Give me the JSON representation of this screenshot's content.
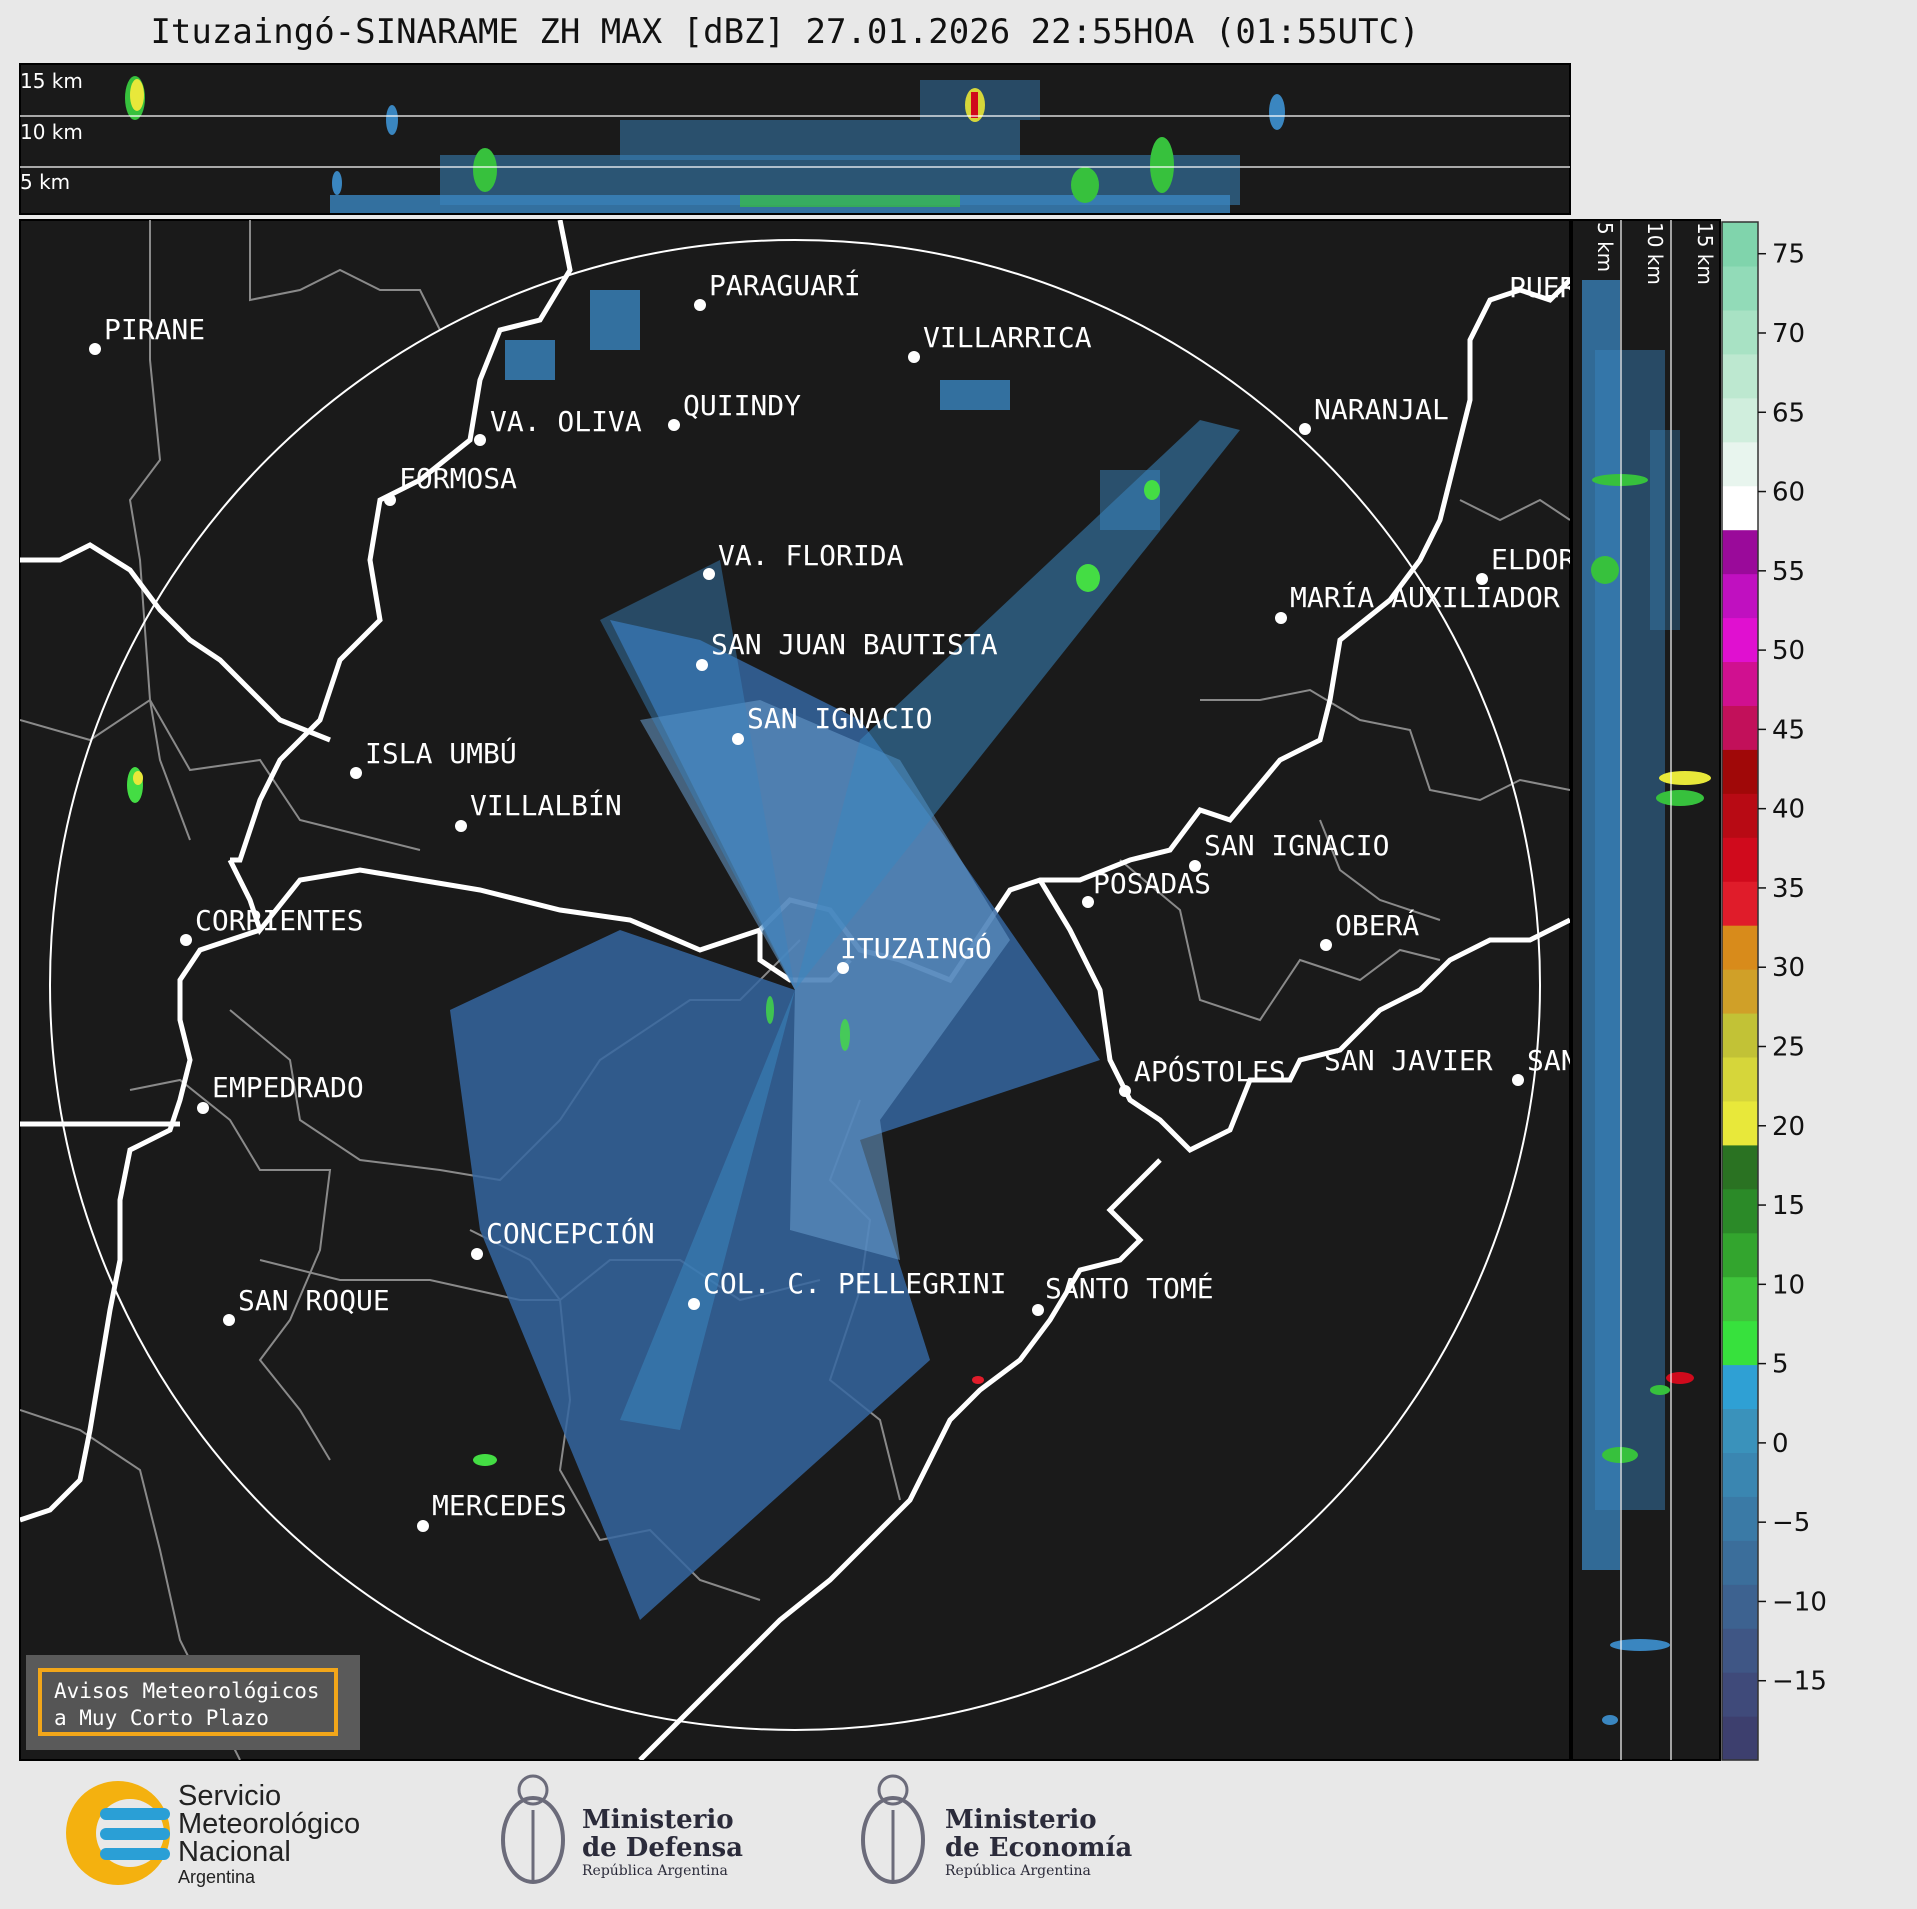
{
  "title": "Ituzaingó-SINARAME ZH MAX [dBZ] 27.01.2026 22:55HOA (01:55UTC)",
  "height_scale": [
    "15 km",
    "10 km",
    "5 km"
  ],
  "cities": [
    {
      "name": "PARAGUARÍ"
    },
    {
      "name": "PIRANE"
    },
    {
      "name": "VILLARRICA"
    },
    {
      "name": "QUIINDY"
    },
    {
      "name": "VA. OLIVA"
    },
    {
      "name": "NARANJAL"
    },
    {
      "name": "FORMOSA"
    },
    {
      "name": "VA. FLORIDA"
    },
    {
      "name": "ELDOR"
    },
    {
      "name": "MARÍA AUXILIADOR"
    },
    {
      "name": "SAN JUAN BAUTISTA"
    },
    {
      "name": "SAN IGNACIO"
    },
    {
      "name": "ISLA UMBÚ"
    },
    {
      "name": "VILLALBÍN"
    },
    {
      "name": "SAN IGNACIO"
    },
    {
      "name": "POSADAS"
    },
    {
      "name": "CORRIENTES"
    },
    {
      "name": "ITUZAINGÓ"
    },
    {
      "name": "OBERÁ"
    },
    {
      "name": "EMPEDRADO"
    },
    {
      "name": "APÓSTOLES"
    },
    {
      "name": "SAN JAVIER"
    },
    {
      "name": "SAN"
    },
    {
      "name": "CONCEPCIÓN"
    },
    {
      "name": "COL. C. PELLEGRINI"
    },
    {
      "name": "SANTO TOMÉ"
    },
    {
      "name": "SAN ROQUE"
    },
    {
      "name": "MERCEDES"
    },
    {
      "name": "PUER"
    }
  ],
  "colorbar": {
    "ticks": [
      "75",
      "70",
      "65",
      "60",
      "55",
      "50",
      "45",
      "40",
      "35",
      "30",
      "25",
      "20",
      "15",
      "10",
      "5",
      "0",
      "−5",
      "−10",
      "−15"
    ],
    "range": [
      -20,
      77
    ],
    "colors": [
      "#3d3f6e",
      "#3f4a7a",
      "#3f5685",
      "#3d6290",
      "#3b6e9b",
      "#3a7aa6",
      "#3a86b1",
      "#3a92bb",
      "#2fa0d4",
      "#37e13d",
      "#3fc43b",
      "#33a52e",
      "#2b8a28",
      "#2a7222",
      "#e8e83a",
      "#d6d63a",
      "#c2c236",
      "#d0a028",
      "#d88b1b",
      "#e01c2a",
      "#d00a1c",
      "#b80a14",
      "#a00808",
      "#c2105a",
      "#d01090",
      "#e010d0",
      "#c010c0",
      "#9a0a9a",
      "#ffffff",
      "#e8f5ee",
      "#d0eedd",
      "#bde8d0",
      "#a8e2c4",
      "#92dbb8",
      "#80d4ac"
    ]
  },
  "colors": {
    "map_bg": "#1a1a1a",
    "echo": "#3a86c0",
    "echo_dim": "#3566a0",
    "strong": "#44dd44",
    "border": "#ffffff",
    "province": "#888888",
    "notice_border": "#f2a619"
  },
  "notice": {
    "line1": "Avisos Meteorológicos",
    "line2": "a Muy Corto Plazo"
  },
  "logos": {
    "smn_line1": "Servicio",
    "smn_line2": "Meteorológico",
    "smn_line3": "Nacional",
    "smn_line4": "Argentina",
    "defensa_line1": "Ministerio",
    "defensa_line2": "de Defensa",
    "defensa_line3": "República Argentina",
    "economia_line1": "Ministerio",
    "economia_line2": "de Economía",
    "economia_line3": "República Argentina"
  }
}
